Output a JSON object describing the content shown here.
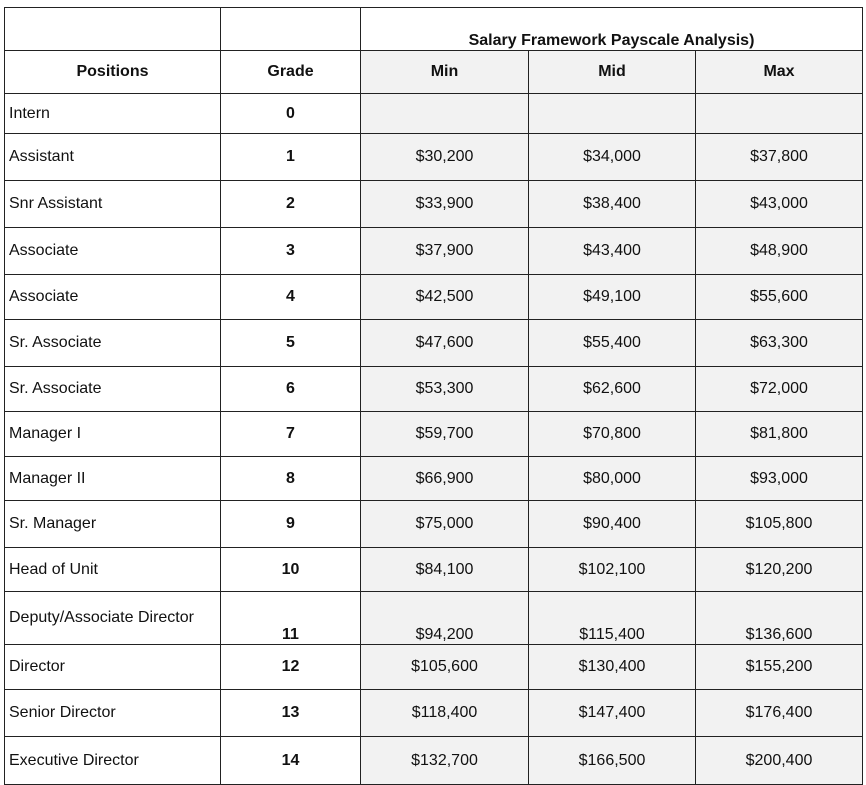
{
  "sheet": {
    "title": "Salary Framework  Payscale Analysis)",
    "headers": {
      "positions": "Positions",
      "grade": "Grade",
      "min": "Min",
      "mid": "Mid",
      "max": "Max"
    },
    "rows": [
      {
        "position": "Intern",
        "grade": "0",
        "min": "",
        "mid": "",
        "max": ""
      },
      {
        "position": "Assistant",
        "grade": "1",
        "min": "$30,200",
        "mid": "$34,000",
        "max": "$37,800"
      },
      {
        "position": "Snr Assistant",
        "grade": "2",
        "min": "$33,900",
        "mid": "$38,400",
        "max": "$43,000"
      },
      {
        "position": "Associate",
        "grade": "3",
        "min": "$37,900",
        "mid": "$43,400",
        "max": "$48,900"
      },
      {
        "position": "Associate",
        "grade": "4",
        "min": "$42,500",
        "mid": "$49,100",
        "max": "$55,600"
      },
      {
        "position": "Sr. Associate",
        "grade": "5",
        "min": "$47,600",
        "mid": "$55,400",
        "max": "$63,300"
      },
      {
        "position": "Sr. Associate",
        "grade": "6",
        "min": "$53,300",
        "mid": "$62,600",
        "max": "$72,000"
      },
      {
        "position": "Manager I",
        "grade": "7",
        "min": "$59,700",
        "mid": "$70,800",
        "max": "$81,800"
      },
      {
        "position": "Manager II",
        "grade": "8",
        "min": "$66,900",
        "mid": "$80,000",
        "max": "$93,000"
      },
      {
        "position": "Sr. Manager",
        "grade": "9",
        "min": "$75,000",
        "mid": "$90,400",
        "max": "$105,800"
      },
      {
        "position": "Head of Unit",
        "grade": "10",
        "min": "$84,100",
        "mid": "$102,100",
        "max": "$120,200"
      },
      {
        "position": "Deputy/Associate Director",
        "grade": "11",
        "min": "$94,200",
        "mid": "$115,400",
        "max": "$136,600"
      },
      {
        "position": "Director",
        "grade": "12",
        "min": "$105,600",
        "mid": "$130,400",
        "max": "$155,200"
      },
      {
        "position": "Senior Director",
        "grade": "13",
        "min": "$118,400",
        "mid": "$147,400",
        "max": "$176,400"
      },
      {
        "position": "Executive Director",
        "grade": "14",
        "min": "$132,700",
        "mid": "$166,500",
        "max": "$200,400"
      }
    ]
  },
  "colors": {
    "value_text": "#cc1111",
    "value_fill": "#f2f2f2",
    "border": "#222222"
  }
}
